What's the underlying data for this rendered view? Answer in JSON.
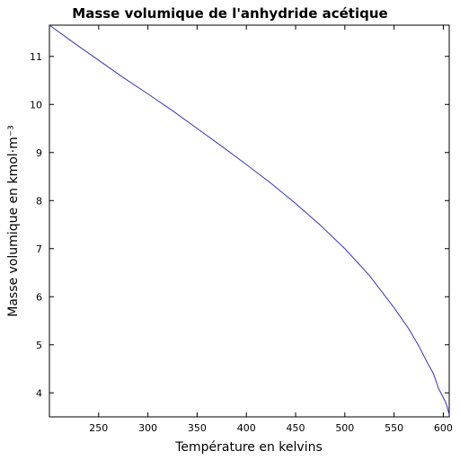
{
  "chart_data": {
    "type": "line",
    "title": "Masse volumique de l'anhydride acétique",
    "xlabel": "Température en kelvins",
    "ylabel": "Masse volumique en kmol·m⁻³",
    "xlim": [
      200,
      606
    ],
    "ylim": [
      3.5,
      11.65
    ],
    "xticks": [
      250,
      300,
      350,
      400,
      450,
      500,
      550,
      600
    ],
    "yticks": [
      4,
      5,
      6,
      7,
      8,
      9,
      10,
      11
    ],
    "grid": false,
    "series": [
      {
        "color": "#3333bb",
        "x": [
          200,
          225,
          250,
          275,
          300,
          325,
          350,
          375,
          400,
          425,
          450,
          475,
          500,
          525,
          550,
          565,
          575,
          585,
          590,
          595,
          600,
          602,
          604,
          605,
          606
        ],
        "y": [
          11.65,
          11.28,
          10.92,
          10.56,
          10.22,
          9.87,
          9.5,
          9.13,
          8.75,
          8.36,
          7.94,
          7.49,
          7.0,
          6.44,
          5.77,
          5.33,
          4.98,
          4.58,
          4.4,
          4.1,
          3.9,
          3.82,
          3.7,
          3.62,
          3.55
        ]
      }
    ]
  }
}
